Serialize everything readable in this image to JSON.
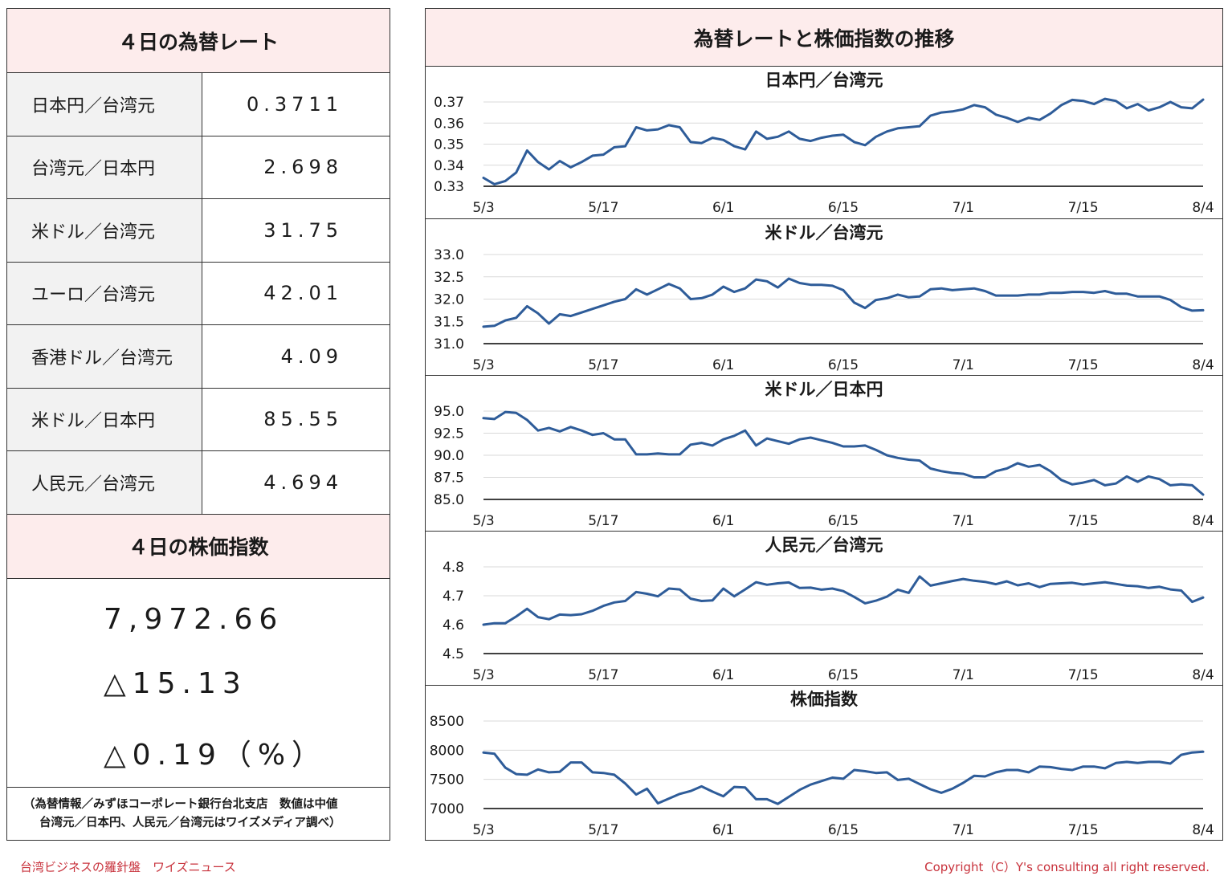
{
  "left": {
    "rates_title": "４日の為替レート",
    "rates": [
      {
        "label": "日本円／台湾元",
        "value": "0.3711"
      },
      {
        "label": "台湾元／日本円",
        "value": "2.698"
      },
      {
        "label": "米ドル／台湾元",
        "value": "31.75"
      },
      {
        "label": "ユーロ／台湾元",
        "value": "42.01"
      },
      {
        "label": "香港ドル／台湾元",
        "value": "4.09"
      },
      {
        "label": "米ドル／日本円",
        "value": "85.55"
      },
      {
        "label": "人民元／台湾元",
        "value": "4.694"
      }
    ],
    "stock_title": "４日の株価指数",
    "stock_value": "7,972.66",
    "stock_change": "△15.13",
    "stock_change_pct": "△0.19（%）",
    "note_line1": "（為替情報／みずほコーポレート銀行台北支店　数値は中値",
    "note_line2": "台湾元／日本円、人民元／台湾元はワイズメディア調べ）"
  },
  "right": {
    "title": "為替レートと株価指数の推移"
  },
  "footer": {
    "left": "台湾ビジネスの羅針盤　ワイズニュース",
    "right": "Copyright（C）Y's consulting all right reserved."
  },
  "colors": {
    "line": "#2e5c99",
    "grid": "#d9d9d9",
    "header_bg": "#fdecec",
    "footer_text": "#c8323c"
  },
  "chart_data": [
    {
      "type": "line",
      "title": "日本円／台湾元",
      "ylim": [
        0.33,
        0.37
      ],
      "yticks": [
        0.33,
        0.34,
        0.35,
        0.36,
        0.37
      ],
      "ytick_labels": [
        "0.33",
        "0.34",
        "0.35",
        "0.36",
        "0.37"
      ],
      "xtick_labels": [
        "5/3",
        "5/17",
        "6/1",
        "6/15",
        "7/1",
        "7/15",
        "8/4"
      ],
      "values": [
        0.334,
        0.331,
        0.3325,
        0.3365,
        0.347,
        0.3415,
        0.338,
        0.342,
        0.339,
        0.3415,
        0.3445,
        0.345,
        0.3485,
        0.349,
        0.358,
        0.3565,
        0.357,
        0.359,
        0.358,
        0.351,
        0.3505,
        0.353,
        0.352,
        0.349,
        0.3475,
        0.356,
        0.3525,
        0.3535,
        0.356,
        0.3525,
        0.3515,
        0.353,
        0.354,
        0.3545,
        0.351,
        0.3495,
        0.3535,
        0.356,
        0.3575,
        0.358,
        0.3585,
        0.3635,
        0.365,
        0.3655,
        0.3665,
        0.3685,
        0.3675,
        0.364,
        0.3625,
        0.3605,
        0.3625,
        0.3615,
        0.3645,
        0.3685,
        0.371,
        0.3705,
        0.369,
        0.3715,
        0.3705,
        0.367,
        0.369,
        0.366,
        0.3675,
        0.37,
        0.3675,
        0.367,
        0.3711
      ]
    },
    {
      "type": "line",
      "title": "米ドル／台湾元",
      "ylim": [
        31.0,
        33.0
      ],
      "yticks": [
        31.0,
        31.5,
        32.0,
        32.5,
        33.0
      ],
      "ytick_labels": [
        "31.0",
        "31.5",
        "32.0",
        "32.5",
        "33.0"
      ],
      "xtick_labels": [
        "5/3",
        "5/17",
        "6/1",
        "6/15",
        "7/1",
        "7/15",
        "8/4"
      ],
      "values": [
        31.38,
        31.4,
        31.52,
        31.58,
        31.84,
        31.68,
        31.45,
        31.66,
        31.62,
        31.7,
        31.78,
        31.86,
        31.94,
        32.0,
        32.22,
        32.1,
        32.22,
        32.34,
        32.24,
        32.0,
        32.02,
        32.1,
        32.28,
        32.16,
        32.24,
        32.44,
        32.4,
        32.26,
        32.46,
        32.36,
        32.32,
        32.32,
        32.3,
        32.2,
        31.92,
        31.8,
        31.98,
        32.02,
        32.1,
        32.04,
        32.06,
        32.22,
        32.24,
        32.2,
        32.22,
        32.24,
        32.18,
        32.08,
        32.08,
        32.08,
        32.1,
        32.1,
        32.14,
        32.14,
        32.16,
        32.16,
        32.14,
        32.18,
        32.12,
        32.12,
        32.06,
        32.06,
        32.06,
        31.98,
        31.82,
        31.74,
        31.75
      ]
    },
    {
      "type": "line",
      "title": "米ドル／日本円",
      "ylim": [
        85.0,
        95.0
      ],
      "yticks": [
        85.0,
        87.5,
        90.0,
        92.5,
        95.0
      ],
      "ytick_labels": [
        "85.0",
        "87.5",
        "90.0",
        "92.5",
        "95.0"
      ],
      "xtick_labels": [
        "5/3",
        "5/17",
        "6/1",
        "6/15",
        "7/1",
        "7/15",
        "8/4"
      ],
      "values": [
        94.2,
        94.1,
        94.9,
        94.8,
        94.0,
        92.8,
        93.1,
        92.7,
        93.2,
        92.8,
        92.3,
        92.5,
        91.8,
        91.8,
        90.1,
        90.1,
        90.2,
        90.1,
        90.1,
        91.2,
        91.4,
        91.1,
        91.8,
        92.2,
        92.8,
        91.1,
        91.9,
        91.6,
        91.3,
        91.8,
        92.0,
        91.7,
        91.4,
        91.0,
        91.0,
        91.1,
        90.6,
        90.0,
        89.7,
        89.5,
        89.4,
        88.5,
        88.2,
        88.0,
        87.9,
        87.5,
        87.5,
        88.2,
        88.5,
        89.1,
        88.7,
        88.9,
        88.2,
        87.2,
        86.7,
        86.9,
        87.2,
        86.6,
        86.8,
        87.6,
        87.0,
        87.6,
        87.3,
        86.6,
        86.7,
        86.6,
        85.55
      ]
    },
    {
      "type": "line",
      "title": "人民元／台湾元",
      "ylim": [
        4.5,
        4.8
      ],
      "yticks": [
        4.5,
        4.6,
        4.7,
        4.8
      ],
      "ytick_labels": [
        "4.5",
        "4.6",
        "4.7",
        "4.8"
      ],
      "xtick_labels": [
        "5/3",
        "5/17",
        "6/1",
        "6/15",
        "7/1",
        "7/15",
        "8/4"
      ],
      "values": [
        4.6,
        4.605,
        4.605,
        4.628,
        4.655,
        4.626,
        4.619,
        4.635,
        4.633,
        4.636,
        4.648,
        4.665,
        4.677,
        4.682,
        4.713,
        4.707,
        4.698,
        4.725,
        4.722,
        4.69,
        4.682,
        4.684,
        4.725,
        4.698,
        4.722,
        4.747,
        4.738,
        4.743,
        4.746,
        4.727,
        4.728,
        4.721,
        4.725,
        4.716,
        4.696,
        4.674,
        4.683,
        4.697,
        4.721,
        4.71,
        4.767,
        4.735,
        4.743,
        4.751,
        4.758,
        4.752,
        4.748,
        4.74,
        4.75,
        4.736,
        4.743,
        4.73,
        4.741,
        4.743,
        4.745,
        4.739,
        4.743,
        4.747,
        4.741,
        4.735,
        4.733,
        4.727,
        4.731,
        4.722,
        4.718,
        4.679,
        4.694
      ]
    },
    {
      "type": "line",
      "title": "株価指数",
      "ylim": [
        7000,
        8500
      ],
      "yticks": [
        7000,
        7500,
        8000,
        8500
      ],
      "ytick_labels": [
        "7000",
        "7500",
        "8000",
        "8500"
      ],
      "xtick_labels": [
        "5/3",
        "5/17",
        "6/1",
        "6/15",
        "7/1",
        "7/15",
        "8/4"
      ],
      "values": [
        7960,
        7940,
        7700,
        7590,
        7580,
        7670,
        7620,
        7630,
        7790,
        7790,
        7620,
        7610,
        7580,
        7430,
        7240,
        7340,
        7090,
        7170,
        7250,
        7300,
        7380,
        7290,
        7210,
        7370,
        7360,
        7160,
        7160,
        7080,
        7200,
        7320,
        7410,
        7470,
        7530,
        7510,
        7660,
        7640,
        7610,
        7620,
        7490,
        7510,
        7420,
        7330,
        7270,
        7340,
        7440,
        7560,
        7550,
        7620,
        7660,
        7660,
        7620,
        7720,
        7710,
        7680,
        7660,
        7720,
        7720,
        7690,
        7780,
        7800,
        7780,
        7800,
        7800,
        7770,
        7920,
        7960,
        7972.66
      ]
    }
  ]
}
